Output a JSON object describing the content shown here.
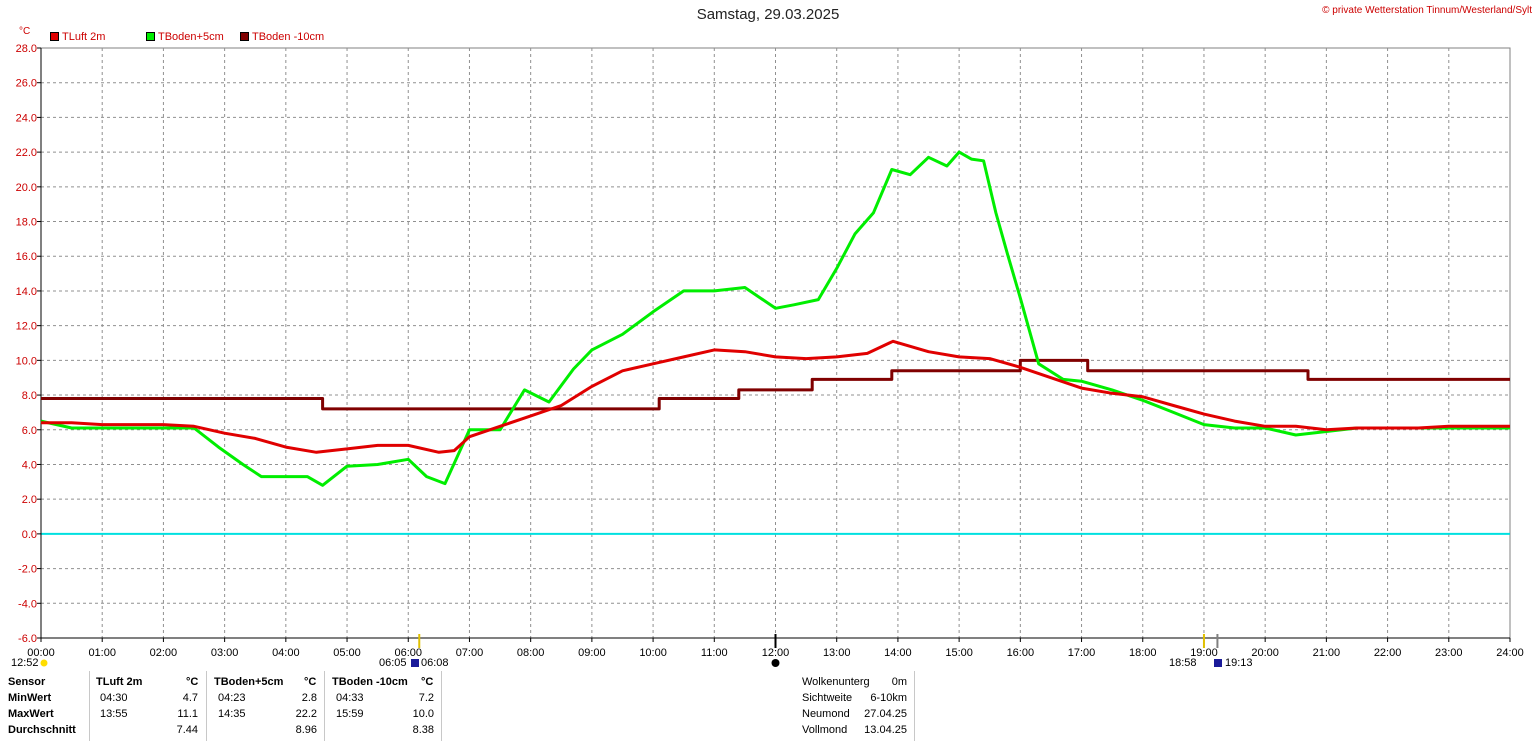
{
  "title": "Samstag, 29.03.2025",
  "copyright": "© private Wetterstation Tinnum/Westerland/Sylt",
  "unit": "°C",
  "legend": [
    {
      "label": "TLuft 2m",
      "color": "#e00000"
    },
    {
      "label": "TBoden+5cm",
      "color": "#00ee00"
    },
    {
      "label": "TBoden -10cm",
      "color": "#800000"
    }
  ],
  "chart_data": {
    "type": "line",
    "title": "Samstag, 29.03.2025",
    "ylabel": "°C",
    "ylim": [
      -6.0,
      28.0
    ],
    "xlim": [
      0,
      24
    ],
    "y_ticks": [
      "28.0",
      "26.0",
      "24.0",
      "22.0",
      "20.0",
      "18.0",
      "16.0",
      "14.0",
      "12.0",
      "10.0",
      "8.0",
      "6.0",
      "4.0",
      "2.0",
      "0.0",
      "-2.0",
      "-4.0",
      "-6.0"
    ],
    "x_ticks": [
      "00:00",
      "01:00",
      "02:00",
      "03:00",
      "04:00",
      "05:00",
      "06:00",
      "07:00",
      "08:00",
      "09:00",
      "10:00",
      "11:00",
      "12:00",
      "13:00",
      "14:00",
      "15:00",
      "16:00",
      "17:00",
      "18:00",
      "19:00",
      "20:00",
      "21:00",
      "22:00",
      "23:00",
      "24:00"
    ],
    "grid": true,
    "zero_line": {
      "value": 0.0,
      "color": "#00e0e0"
    },
    "series": [
      {
        "name": "TLuft 2m",
        "color": "#e00000",
        "x": [
          0,
          0.5,
          1,
          1.5,
          2,
          2.5,
          3,
          3.5,
          4,
          4.5,
          5,
          5.5,
          6,
          6.5,
          6.75,
          7,
          7.5,
          8,
          8.5,
          9,
          9.5,
          10,
          10.5,
          11,
          11.5,
          12,
          12.5,
          13,
          13.5,
          13.92,
          14.5,
          15,
          15.5,
          16,
          16.5,
          17,
          17.5,
          18,
          18.5,
          19,
          19.5,
          20,
          20.5,
          21,
          21.5,
          22,
          22.5,
          23,
          23.5,
          24
        ],
        "values": [
          6.4,
          6.4,
          6.3,
          6.3,
          6.3,
          6.2,
          5.8,
          5.5,
          5.0,
          4.7,
          4.9,
          5.1,
          5.1,
          4.7,
          4.8,
          5.6,
          6.2,
          6.8,
          7.4,
          8.5,
          9.4,
          9.8,
          10.2,
          10.6,
          10.5,
          10.2,
          10.1,
          10.2,
          10.4,
          11.1,
          10.5,
          10.2,
          10.1,
          9.6,
          9.0,
          8.4,
          8.1,
          7.9,
          7.4,
          6.9,
          6.5,
          6.2,
          6.2,
          6.0,
          6.1,
          6.1,
          6.1,
          6.2,
          6.2,
          6.2
        ]
      },
      {
        "name": "TBoden+5cm",
        "color": "#00ee00",
        "x": [
          0,
          0.5,
          1,
          1.5,
          2,
          2.5,
          2.9,
          3.3,
          3.6,
          4,
          4.35,
          4.6,
          5,
          5.5,
          6,
          6.3,
          6.6,
          7,
          7.5,
          7.9,
          8.3,
          8.7,
          9,
          9.5,
          10,
          10.5,
          11,
          11.5,
          12,
          12.3,
          12.7,
          13,
          13.3,
          13.6,
          13.9,
          14.2,
          14.5,
          14.8,
          15,
          15.2,
          15.4,
          15.6,
          15.8,
          16,
          16.3,
          16.7,
          17,
          17.5,
          18,
          18.5,
          19,
          19.5,
          20,
          20.5,
          21,
          21.5,
          22,
          22.5,
          23,
          23.5,
          24
        ],
        "values": [
          6.5,
          6.1,
          6.1,
          6.1,
          6.1,
          6.1,
          5.0,
          4.0,
          3.3,
          3.3,
          3.3,
          2.8,
          3.9,
          4.0,
          4.3,
          3.3,
          2.9,
          6.0,
          6.0,
          8.3,
          7.6,
          9.5,
          10.6,
          11.5,
          12.8,
          14.0,
          14.0,
          14.2,
          13.0,
          13.2,
          13.5,
          15.3,
          17.3,
          18.5,
          21.0,
          20.7,
          21.7,
          21.2,
          22.0,
          21.6,
          21.5,
          18.5,
          16.0,
          13.6,
          9.8,
          8.9,
          8.8,
          8.3,
          7.7,
          7.0,
          6.3,
          6.1,
          6.1,
          5.7,
          5.9,
          6.1,
          6.1,
          6.1,
          6.1,
          6.1,
          6.1
        ]
      },
      {
        "name": "TBoden -10cm",
        "color": "#800000",
        "x": [
          0,
          4.6,
          4.6,
          10.1,
          10.1,
          11.4,
          11.4,
          12.6,
          12.6,
          13.9,
          13.9,
          16.0,
          16.0,
          17.1,
          17.1,
          20.7,
          20.7,
          24
        ],
        "values": [
          7.8,
          7.8,
          7.2,
          7.2,
          7.8,
          7.8,
          8.3,
          8.3,
          8.9,
          8.9,
          9.4,
          9.4,
          10.0,
          10.0,
          9.4,
          9.4,
          8.9,
          8.9
        ]
      }
    ]
  },
  "sun_moon": {
    "rows": [
      {
        "left": "12:52",
        "mid": "06:05",
        "sunrise": "06:08",
        "sunset_a": "18:58",
        "sunset_b": "19:13"
      }
    ]
  },
  "stats": {
    "headers": {
      "sensor": "Sensor",
      "col1": "TLuft 2m",
      "unit1": "°C",
      "col2": "TBoden+5cm",
      "unit2": "°C",
      "col3": "TBoden -10cm",
      "unit3": "°C"
    },
    "rows": [
      {
        "label": "MinWert",
        "t1": "04:30",
        "v1": "4.7",
        "t2": "04:23",
        "v2": "2.8",
        "t3": "04:33",
        "v3": "7.2"
      },
      {
        "label": "MaxWert",
        "t1": "13:55",
        "v1": "11.1",
        "t2": "14:35",
        "v2": "22.2",
        "t3": "15:59",
        "v3": "10.0"
      },
      {
        "label": "Durchschnitt",
        "t1": "",
        "v1": "7.44",
        "t2": "",
        "v2": "8.96",
        "t3": "",
        "v3": "8.38"
      }
    ]
  },
  "info": [
    {
      "label": "Wolkenunterg",
      "value": "0m"
    },
    {
      "label": "Sichtweite",
      "value": "6-10km"
    },
    {
      "label": "Neumond",
      "value": "27.04.25"
    },
    {
      "label": "Vollmond",
      "value": "13.04.25"
    }
  ]
}
